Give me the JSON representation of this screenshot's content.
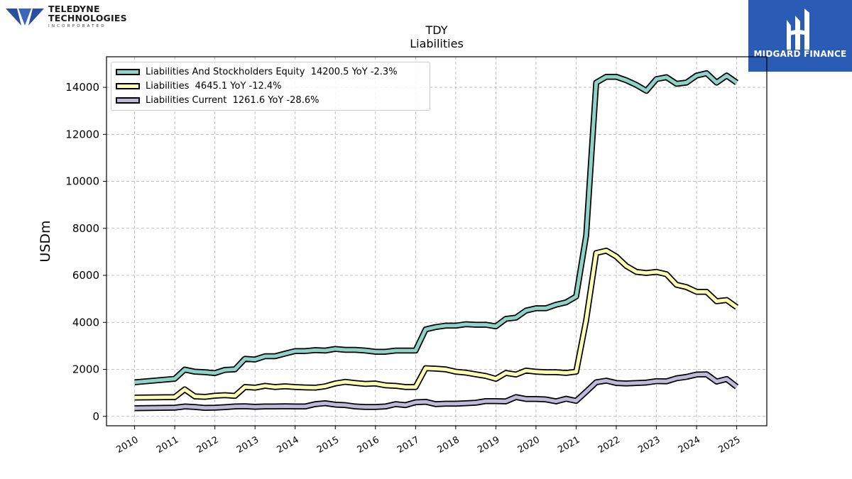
{
  "header": {
    "company_logo": {
      "line1": "TELEDYNE",
      "line2": "TECHNOLOGIES",
      "line3": "INCORPORATED"
    },
    "brand": {
      "name": "MIDGARD FINANCE",
      "color": "#2a5bb5"
    }
  },
  "chart_data": {
    "type": "line",
    "title": "TDY",
    "subtitle": "Liabilities",
    "ylabel": "USDm",
    "xlabel": "",
    "xlim": [
      2009.3,
      2025.75
    ],
    "ylim": [
      -400,
      15300
    ],
    "grid": true,
    "legend_position": "top-left",
    "x_ticks": [
      "2010",
      "2011",
      "2012",
      "2013",
      "2014",
      "2015",
      "2016",
      "2017",
      "2018",
      "2019",
      "2020",
      "2021",
      "2022",
      "2023",
      "2024",
      "2025"
    ],
    "y_ticks": [
      0,
      2000,
      4000,
      6000,
      8000,
      10000,
      12000,
      14000
    ],
    "series": [
      {
        "name": "Liabilities And Stockholders Equity",
        "legend_label": "Liabilities And Stockholders Equity  14200.5 YoY -2.3%",
        "color": "#8dd3c7",
        "x": [
          2010.0,
          2011.0,
          2011.25,
          2011.5,
          2011.75,
          2012.0,
          2012.25,
          2012.5,
          2012.75,
          2013.0,
          2013.25,
          2013.5,
          2013.75,
          2014.0,
          2014.25,
          2014.5,
          2014.75,
          2015.0,
          2015.25,
          2015.5,
          2015.75,
          2016.0,
          2016.25,
          2016.5,
          2016.75,
          2017.0,
          2017.25,
          2017.5,
          2017.75,
          2018.0,
          2018.25,
          2018.5,
          2018.75,
          2019.0,
          2019.25,
          2019.5,
          2019.75,
          2020.0,
          2020.25,
          2020.5,
          2020.75,
          2021.0,
          2021.25,
          2021.5,
          2021.75,
          2022.0,
          2022.25,
          2022.5,
          2022.75,
          2023.0,
          2023.25,
          2023.5,
          2023.75,
          2024.0,
          2024.25,
          2024.5,
          2024.75,
          2025.0
        ],
        "values": [
          1450,
          1600,
          1990,
          1900,
          1880,
          1840,
          1980,
          2000,
          2450,
          2420,
          2560,
          2560,
          2670,
          2780,
          2780,
          2820,
          2800,
          2870,
          2830,
          2830,
          2800,
          2750,
          2750,
          2800,
          2800,
          2800,
          3700,
          3800,
          3860,
          3860,
          3920,
          3900,
          3900,
          3830,
          4150,
          4200,
          4500,
          4600,
          4600,
          4750,
          4850,
          5100,
          7700,
          14200,
          14450,
          14450,
          14300,
          14100,
          13850,
          14350,
          14430,
          14150,
          14200,
          14500,
          14600,
          14200,
          14500,
          14200
        ]
      },
      {
        "name": "Liabilities",
        "legend_label": "Liabilities  4645.1 YoY -12.4%",
        "color": "#ffffb3",
        "x": [
          2010.0,
          2011.0,
          2011.25,
          2011.5,
          2011.75,
          2012.0,
          2012.25,
          2012.5,
          2012.75,
          2013.0,
          2013.25,
          2013.5,
          2013.75,
          2014.0,
          2014.25,
          2014.5,
          2014.75,
          2015.0,
          2015.25,
          2015.5,
          2015.75,
          2016.0,
          2016.25,
          2016.5,
          2016.75,
          2017.0,
          2017.25,
          2017.5,
          2017.75,
          2018.0,
          2018.25,
          2018.5,
          2018.75,
          2019.0,
          2019.25,
          2019.5,
          2019.75,
          2020.0,
          2020.25,
          2020.5,
          2020.75,
          2021.0,
          2021.25,
          2021.5,
          2021.75,
          2022.0,
          2022.25,
          2022.5,
          2022.75,
          2023.0,
          2023.25,
          2023.5,
          2023.75,
          2024.0,
          2024.25,
          2024.5,
          2024.75,
          2025.0
        ],
        "values": [
          800,
          820,
          1150,
          850,
          830,
          880,
          900,
          870,
          1250,
          1220,
          1300,
          1250,
          1280,
          1250,
          1230,
          1220,
          1280,
          1400,
          1470,
          1420,
          1380,
          1400,
          1320,
          1300,
          1250,
          1250,
          2050,
          2030,
          2000,
          1900,
          1860,
          1790,
          1720,
          1600,
          1850,
          1780,
          1950,
          1900,
          1880,
          1880,
          1850,
          1900,
          4100,
          6950,
          7050,
          6800,
          6400,
          6150,
          6100,
          6150,
          6050,
          5600,
          5500,
          5300,
          5300,
          4900,
          4950,
          4645
        ]
      },
      {
        "name": "Liabilities Current",
        "legend_label": "Liabilities Current  1261.6 YoY -28.6%",
        "color": "#bebada",
        "x": [
          2010.0,
          2011.0,
          2011.25,
          2011.5,
          2011.75,
          2012.0,
          2012.25,
          2012.5,
          2012.75,
          2013.0,
          2013.25,
          2013.5,
          2013.75,
          2014.0,
          2014.25,
          2014.5,
          2014.75,
          2015.0,
          2015.25,
          2015.5,
          2015.75,
          2016.0,
          2016.25,
          2016.5,
          2016.75,
          2017.0,
          2017.25,
          2017.5,
          2017.75,
          2018.0,
          2018.25,
          2018.5,
          2018.75,
          2019.0,
          2019.25,
          2019.5,
          2019.75,
          2020.0,
          2020.25,
          2020.5,
          2020.75,
          2021.0,
          2021.25,
          2021.5,
          2021.75,
          2022.0,
          2022.25,
          2022.5,
          2022.75,
          2023.0,
          2023.25,
          2023.5,
          2023.75,
          2024.0,
          2024.25,
          2024.5,
          2024.75,
          2025.0
        ],
        "values": [
          350,
          370,
          420,
          400,
          360,
          370,
          390,
          420,
          430,
          410,
          420,
          420,
          430,
          420,
          420,
          520,
          560,
          500,
          480,
          420,
          400,
          400,
          420,
          520,
          480,
          600,
          620,
          520,
          540,
          540,
          560,
          580,
          650,
          650,
          640,
          820,
          740,
          740,
          720,
          640,
          750,
          660,
          1050,
          1450,
          1520,
          1420,
          1400,
          1420,
          1440,
          1500,
          1490,
          1620,
          1680,
          1780,
          1790,
          1480,
          1590,
          1262
        ]
      }
    ]
  }
}
